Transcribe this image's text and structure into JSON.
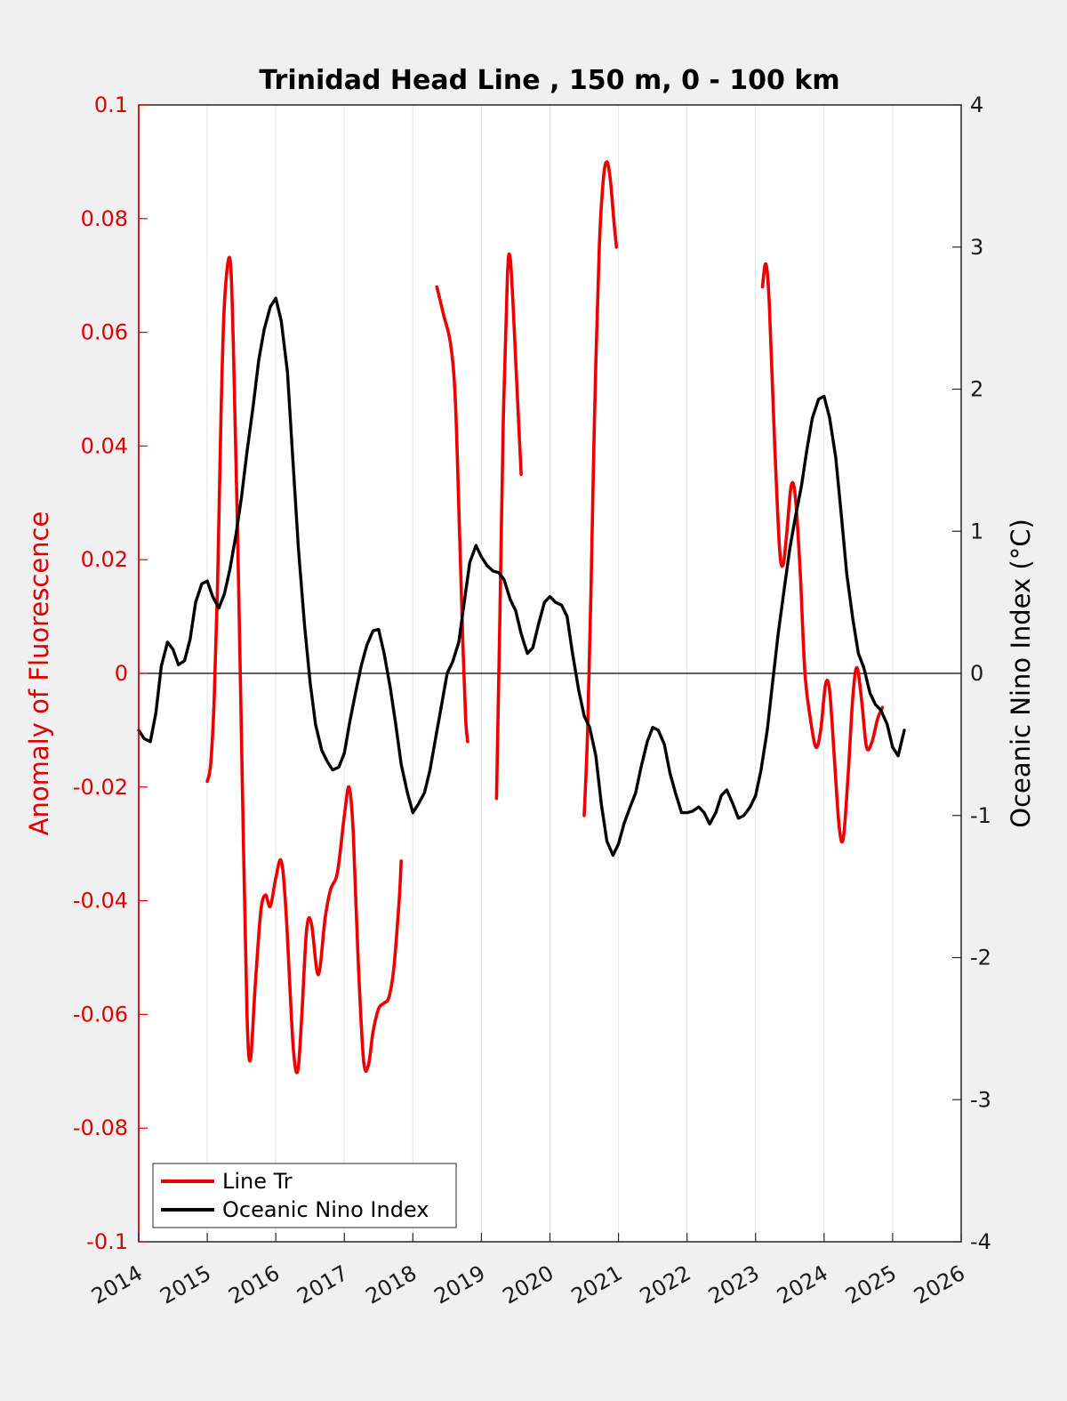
{
  "chart_data": {
    "type": "line",
    "title": "Trinidad Head Line , 150 m, 0 - 100 km",
    "ylabel_left": "Anomaly of Fluorescence",
    "ylabel_right": "Oceanic Nino Index (°C)",
    "xlim": [
      2014,
      2026
    ],
    "ylim_left": [
      -0.1,
      0.1
    ],
    "ylim_right": [
      -4,
      4
    ],
    "x_ticks": [
      "2014",
      "2015",
      "2016",
      "2017",
      "2018",
      "2019",
      "2020",
      "2021",
      "2022",
      "2023",
      "2024",
      "2025",
      "2026"
    ],
    "y_left_ticks": [
      "0.1",
      "0.08",
      "0.06",
      "0.04",
      "0.02",
      "0",
      "-0.02",
      "-0.04",
      "-0.06",
      "-0.08",
      "-0.1"
    ],
    "y_right_ticks": [
      "4",
      "3",
      "2",
      "1",
      "0",
      "-1",
      "-2",
      "-3",
      "-4"
    ],
    "grid": "vertical",
    "legend_position": "bottom-left",
    "colors": {
      "line_tr": "#ee0000",
      "oni": "#000000",
      "axis_left": "#e00000"
    },
    "series": [
      {
        "name": "Line Tr",
        "axis": "left",
        "segments": [
          [
            [
              2015.0,
              -0.019
            ],
            [
              2015.05,
              -0.016
            ],
            [
              2015.1,
              -0.005
            ],
            [
              2015.15,
              0.015
            ],
            [
              2015.2,
              0.045
            ],
            [
              2015.25,
              0.065
            ],
            [
              2015.33,
              0.073
            ],
            [
              2015.38,
              0.058
            ],
            [
              2015.45,
              0.02
            ],
            [
              2015.52,
              -0.025
            ],
            [
              2015.58,
              -0.06
            ],
            [
              2015.63,
              -0.068
            ],
            [
              2015.7,
              -0.055
            ],
            [
              2015.78,
              -0.042
            ],
            [
              2015.85,
              -0.039
            ],
            [
              2015.92,
              -0.041
            ],
            [
              2016.0,
              -0.036
            ],
            [
              2016.08,
              -0.033
            ],
            [
              2016.15,
              -0.042
            ],
            [
              2016.25,
              -0.065
            ],
            [
              2016.32,
              -0.07
            ],
            [
              2016.38,
              -0.06
            ],
            [
              2016.45,
              -0.045
            ],
            [
              2016.52,
              -0.044
            ],
            [
              2016.62,
              -0.053
            ],
            [
              2016.72,
              -0.043
            ],
            [
              2016.8,
              -0.038
            ],
            [
              2016.9,
              -0.035
            ],
            [
              2017.0,
              -0.025
            ],
            [
              2017.07,
              -0.02
            ],
            [
              2017.13,
              -0.028
            ],
            [
              2017.2,
              -0.05
            ],
            [
              2017.28,
              -0.068
            ],
            [
              2017.35,
              -0.069
            ],
            [
              2017.42,
              -0.063
            ],
            [
              2017.5,
              -0.059
            ],
            [
              2017.58,
              -0.058
            ],
            [
              2017.65,
              -0.057
            ],
            [
              2017.72,
              -0.052
            ],
            [
              2017.8,
              -0.04
            ],
            [
              2017.83,
              -0.033
            ]
          ],
          [
            [
              2018.35,
              0.068
            ],
            [
              2018.45,
              0.063
            ],
            [
              2018.55,
              0.058
            ],
            [
              2018.62,
              0.048
            ],
            [
              2018.68,
              0.025
            ],
            [
              2018.73,
              0.005
            ],
            [
              2018.77,
              -0.008
            ],
            [
              2018.8,
              -0.012
            ]
          ],
          [
            [
              2019.22,
              -0.022
            ],
            [
              2019.27,
              0.01
            ],
            [
              2019.32,
              0.045
            ],
            [
              2019.38,
              0.07
            ],
            [
              2019.42,
              0.073
            ],
            [
              2019.47,
              0.063
            ],
            [
              2019.52,
              0.05
            ],
            [
              2019.58,
              0.035
            ]
          ],
          [
            [
              2020.5,
              -0.025
            ],
            [
              2020.55,
              -0.01
            ],
            [
              2020.6,
              0.015
            ],
            [
              2020.65,
              0.045
            ],
            [
              2020.72,
              0.075
            ],
            [
              2020.78,
              0.087
            ],
            [
              2020.83,
              0.09
            ],
            [
              2020.88,
              0.087
            ],
            [
              2020.93,
              0.08
            ],
            [
              2020.97,
              0.075
            ]
          ],
          [
            [
              2023.1,
              0.068
            ],
            [
              2023.15,
              0.072
            ],
            [
              2023.2,
              0.065
            ],
            [
              2023.28,
              0.04
            ],
            [
              2023.35,
              0.022
            ],
            [
              2023.4,
              0.019
            ],
            [
              2023.45,
              0.024
            ],
            [
              2023.52,
              0.033
            ],
            [
              2023.58,
              0.031
            ],
            [
              2023.65,
              0.018
            ],
            [
              2023.72,
              0.0
            ],
            [
              2023.8,
              -0.008
            ],
            [
              2023.88,
              -0.013
            ],
            [
              2023.95,
              -0.01
            ],
            [
              2024.02,
              -0.002
            ],
            [
              2024.08,
              -0.003
            ],
            [
              2024.15,
              -0.015
            ],
            [
              2024.22,
              -0.027
            ],
            [
              2024.28,
              -0.029
            ],
            [
              2024.35,
              -0.018
            ],
            [
              2024.42,
              -0.004
            ],
            [
              2024.48,
              0.001
            ],
            [
              2024.55,
              -0.005
            ],
            [
              2024.62,
              -0.013
            ],
            [
              2024.7,
              -0.012
            ],
            [
              2024.78,
              -0.008
            ],
            [
              2024.85,
              -0.006
            ]
          ]
        ]
      },
      {
        "name": "Oceanic Nino Index",
        "axis": "right",
        "points": [
          [
            2014.0,
            -0.4
          ],
          [
            2014.08,
            -0.46
          ],
          [
            2014.17,
            -0.48
          ],
          [
            2014.25,
            -0.28
          ],
          [
            2014.33,
            0.05
          ],
          [
            2014.42,
            0.22
          ],
          [
            2014.5,
            0.17
          ],
          [
            2014.58,
            0.06
          ],
          [
            2014.67,
            0.09
          ],
          [
            2014.75,
            0.24
          ],
          [
            2014.83,
            0.5
          ],
          [
            2014.92,
            0.63
          ],
          [
            2015.0,
            0.65
          ],
          [
            2015.08,
            0.54
          ],
          [
            2015.17,
            0.46
          ],
          [
            2015.25,
            0.56
          ],
          [
            2015.33,
            0.73
          ],
          [
            2015.42,
            0.98
          ],
          [
            2015.5,
            1.24
          ],
          [
            2015.58,
            1.56
          ],
          [
            2015.67,
            1.88
          ],
          [
            2015.75,
            2.2
          ],
          [
            2015.83,
            2.42
          ],
          [
            2015.92,
            2.58
          ],
          [
            2016.0,
            2.64
          ],
          [
            2016.08,
            2.48
          ],
          [
            2016.17,
            2.12
          ],
          [
            2016.25,
            1.5
          ],
          [
            2016.33,
            0.88
          ],
          [
            2016.42,
            0.34
          ],
          [
            2016.5,
            -0.06
          ],
          [
            2016.58,
            -0.36
          ],
          [
            2016.67,
            -0.54
          ],
          [
            2016.75,
            -0.62
          ],
          [
            2016.83,
            -0.68
          ],
          [
            2016.92,
            -0.66
          ],
          [
            2017.0,
            -0.56
          ],
          [
            2017.08,
            -0.34
          ],
          [
            2017.17,
            -0.12
          ],
          [
            2017.25,
            0.06
          ],
          [
            2017.33,
            0.2
          ],
          [
            2017.42,
            0.3
          ],
          [
            2017.5,
            0.31
          ],
          [
            2017.58,
            0.14
          ],
          [
            2017.67,
            -0.1
          ],
          [
            2017.75,
            -0.36
          ],
          [
            2017.83,
            -0.64
          ],
          [
            2017.92,
            -0.84
          ],
          [
            2018.0,
            -0.98
          ],
          [
            2018.08,
            -0.92
          ],
          [
            2018.17,
            -0.84
          ],
          [
            2018.25,
            -0.68
          ],
          [
            2018.33,
            -0.46
          ],
          [
            2018.42,
            -0.22
          ],
          [
            2018.5,
            0.0
          ],
          [
            2018.58,
            0.08
          ],
          [
            2018.67,
            0.22
          ],
          [
            2018.75,
            0.5
          ],
          [
            2018.83,
            0.78
          ],
          [
            2018.92,
            0.9
          ],
          [
            2019.0,
            0.82
          ],
          [
            2019.08,
            0.76
          ],
          [
            2019.17,
            0.72
          ],
          [
            2019.25,
            0.71
          ],
          [
            2019.33,
            0.66
          ],
          [
            2019.42,
            0.52
          ],
          [
            2019.5,
            0.44
          ],
          [
            2019.58,
            0.28
          ],
          [
            2019.67,
            0.14
          ],
          [
            2019.75,
            0.18
          ],
          [
            2019.83,
            0.34
          ],
          [
            2019.92,
            0.5
          ],
          [
            2020.0,
            0.54
          ],
          [
            2020.08,
            0.5
          ],
          [
            2020.17,
            0.48
          ],
          [
            2020.25,
            0.4
          ],
          [
            2020.33,
            0.14
          ],
          [
            2020.42,
            -0.12
          ],
          [
            2020.5,
            -0.3
          ],
          [
            2020.58,
            -0.38
          ],
          [
            2020.67,
            -0.58
          ],
          [
            2020.75,
            -0.92
          ],
          [
            2020.83,
            -1.18
          ],
          [
            2020.92,
            -1.28
          ],
          [
            2021.0,
            -1.2
          ],
          [
            2021.08,
            -1.06
          ],
          [
            2021.17,
            -0.94
          ],
          [
            2021.25,
            -0.84
          ],
          [
            2021.33,
            -0.66
          ],
          [
            2021.42,
            -0.48
          ],
          [
            2021.5,
            -0.38
          ],
          [
            2021.58,
            -0.4
          ],
          [
            2021.67,
            -0.5
          ],
          [
            2021.75,
            -0.7
          ],
          [
            2021.83,
            -0.84
          ],
          [
            2021.92,
            -0.98
          ],
          [
            2022.0,
            -0.98
          ],
          [
            2022.08,
            -0.97
          ],
          [
            2022.17,
            -0.94
          ],
          [
            2022.25,
            -0.98
          ],
          [
            2022.33,
            -1.06
          ],
          [
            2022.42,
            -0.98
          ],
          [
            2022.5,
            -0.86
          ],
          [
            2022.58,
            -0.82
          ],
          [
            2022.67,
            -0.92
          ],
          [
            2022.75,
            -1.02
          ],
          [
            2022.83,
            -1.0
          ],
          [
            2022.92,
            -0.94
          ],
          [
            2023.0,
            -0.86
          ],
          [
            2023.08,
            -0.68
          ],
          [
            2023.17,
            -0.4
          ],
          [
            2023.25,
            -0.06
          ],
          [
            2023.33,
            0.28
          ],
          [
            2023.42,
            0.6
          ],
          [
            2023.5,
            0.88
          ],
          [
            2023.58,
            1.1
          ],
          [
            2023.67,
            1.32
          ],
          [
            2023.75,
            1.58
          ],
          [
            2023.83,
            1.8
          ],
          [
            2023.92,
            1.93
          ],
          [
            2024.0,
            1.95
          ],
          [
            2024.08,
            1.8
          ],
          [
            2024.17,
            1.52
          ],
          [
            2024.25,
            1.12
          ],
          [
            2024.33,
            0.7
          ],
          [
            2024.42,
            0.38
          ],
          [
            2024.5,
            0.14
          ],
          [
            2024.58,
            0.04
          ],
          [
            2024.67,
            -0.14
          ],
          [
            2024.75,
            -0.22
          ],
          [
            2024.83,
            -0.26
          ],
          [
            2024.92,
            -0.36
          ],
          [
            2025.0,
            -0.52
          ],
          [
            2025.08,
            -0.58
          ],
          [
            2025.17,
            -0.4
          ]
        ]
      }
    ]
  }
}
